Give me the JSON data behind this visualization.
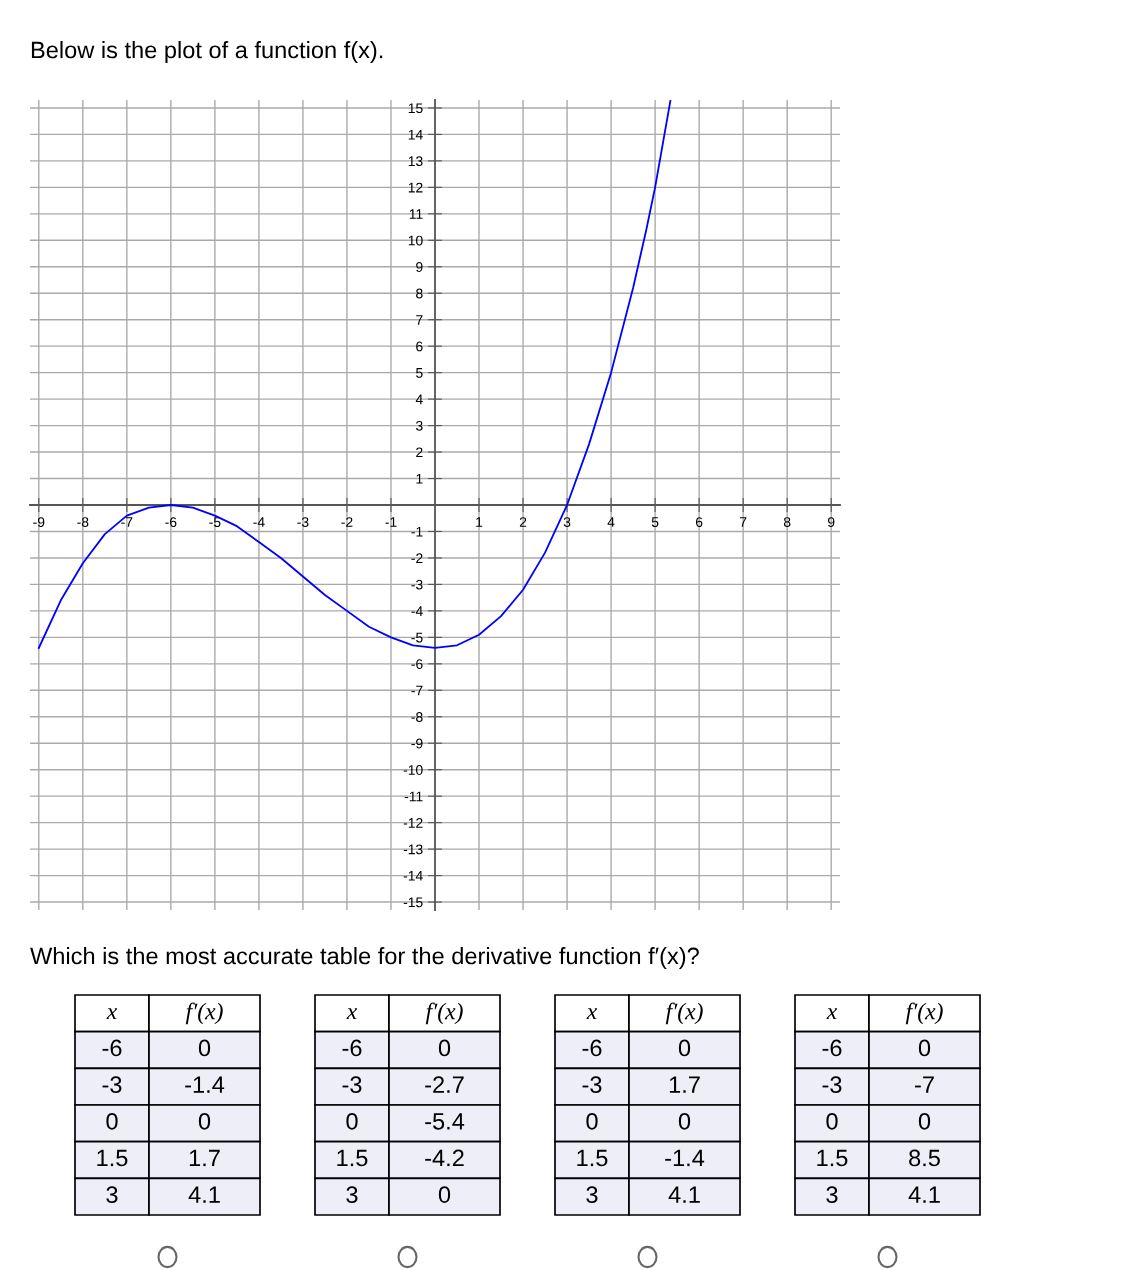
{
  "chart_data": [
    {
      "type": "line",
      "title": "Below is the plot of a function f(x).",
      "x": [
        -9,
        -8.5,
        -8,
        -7.5,
        -7,
        -6.5,
        -6,
        -5.5,
        -5,
        -4.5,
        -4,
        -3.5,
        -3,
        -2.5,
        -2,
        -1.5,
        -1,
        -0.5,
        0,
        0.5,
        1,
        1.5,
        2,
        2.5,
        3,
        3.5,
        4,
        4.5,
        4.8,
        5,
        5.35
      ],
      "series": [
        {
          "color": "#0000ff",
          "values": [
            -5.4,
            -3.6,
            -2.2,
            -1.1,
            -0.4,
            -0.1,
            0,
            -0.1,
            -0.4,
            -0.8,
            -1.4,
            -2.0,
            -2.7,
            -3.4,
            -4.0,
            -4.6,
            -5.0,
            -5.3,
            -5.4,
            -5.3,
            -4.9,
            -4.2,
            -3.2,
            -1.8,
            0,
            2.3,
            5.0,
            8.2,
            10.4,
            12.0,
            15.3
          ]
        }
      ],
      "xlim": [
        -9.2,
        9.2
      ],
      "ylim": [
        -15.3,
        15.3
      ],
      "xticks": [
        -9,
        -8,
        -7,
        -6,
        -5,
        -4,
        -3,
        -2,
        -1,
        1,
        2,
        3,
        4,
        5,
        6,
        7,
        8,
        9
      ],
      "yticks": [
        -15,
        -14,
        -13,
        -12,
        -11,
        -10,
        -9,
        -8,
        -7,
        -6,
        -5,
        -4,
        -3,
        -2,
        -1,
        1,
        2,
        3,
        4,
        5,
        6,
        7,
        8,
        9,
        10,
        11,
        12,
        13,
        14,
        15
      ],
      "grid": true,
      "marker": "none",
      "line_style": "solid",
      "legend": false,
      "annotations": [
        "Which is the most accurate table for the derivative function f′(x)?"
      ]
    },
    {
      "type": "other",
      "categories": [
        "x",
        "f′(x)"
      ],
      "cell_labels": [
        [
          "-6",
          "0"
        ],
        [
          "-3",
          "-1.4"
        ],
        [
          "0",
          "0"
        ],
        [
          "1.5",
          "1.7"
        ],
        [
          "3",
          "4.1"
        ]
      ]
    },
    {
      "type": "other",
      "categories": [
        "x",
        "f′(x)"
      ],
      "cell_labels": [
        [
          "-6",
          "0"
        ],
        [
          "-3",
          "-2.7"
        ],
        [
          "0",
          "-5.4"
        ],
        [
          "1.5",
          "-4.2"
        ],
        [
          "3",
          "0"
        ]
      ]
    },
    {
      "type": "other",
      "categories": [
        "x",
        "f′(x)"
      ],
      "cell_labels": [
        [
          "-6",
          "0"
        ],
        [
          "-3",
          "1.7"
        ],
        [
          "0",
          "0"
        ],
        [
          "1.5",
          "-1.4"
        ],
        [
          "3",
          "4.1"
        ]
      ]
    },
    {
      "type": "other",
      "categories": [
        "x",
        "f′(x)"
      ],
      "cell_labels": [
        [
          "-6",
          "0"
        ],
        [
          "-3",
          "-7"
        ],
        [
          "0",
          "0"
        ],
        [
          "1.5",
          "8.5"
        ],
        [
          "3",
          "4.1"
        ]
      ]
    }
  ]
}
